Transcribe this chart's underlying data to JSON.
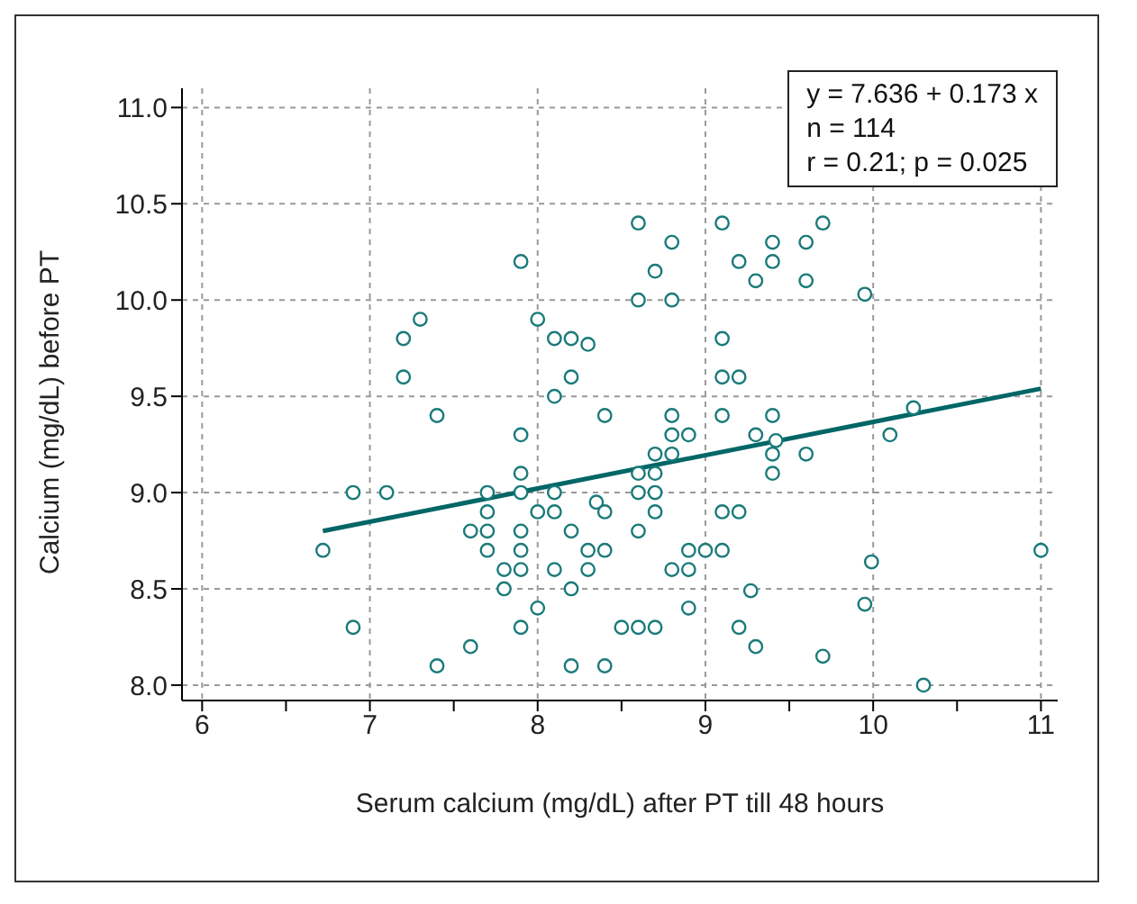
{
  "chart_data": {
    "type": "scatter",
    "xlabel": "Serum calcium (mg/dL) after PT till 48 hours",
    "ylabel": "Calcium (mg/dL) before PT",
    "xlim": [
      5.88,
      11.1
    ],
    "xticks": [
      6,
      {
        "value": 6.5,
        "label": null
      },
      7,
      {
        "value": 7.5,
        "label": null
      },
      8,
      {
        "value": 8.5,
        "label": null
      },
      9,
      {
        "value": 9.5,
        "label": null
      },
      10,
      {
        "value": 10.5,
        "label": null
      },
      11
    ],
    "ylim": [
      7.92,
      11.1
    ],
    "yticks": [
      {
        "value": 8,
        "label": "8.0"
      },
      8.5,
      {
        "value": 9,
        "label": "9.0"
      },
      9.5,
      {
        "value": 10,
        "label": "10.0"
      },
      10.5,
      {
        "value": 11,
        "label": "11.0"
      }
    ],
    "grid": true,
    "annotations": [
      "y = 7.636 + 0.173 x",
      "n = 114",
      "r = 0.21; p = 0.025"
    ],
    "series": [
      {
        "marker": "circle",
        "color": "#1a7a7a",
        "x": [
          8.6,
          8.8,
          8.7,
          8.6,
          8.8,
          9.1,
          9.4,
          9.6,
          9.7,
          9.2,
          9.4,
          9.3,
          9.6,
          9.95,
          9.1,
          9.1,
          9.2,
          8.8,
          9.1,
          9.4,
          10.24,
          7.9,
          7.3,
          7.2,
          8.0,
          8.1,
          8.2,
          8.3,
          7.2,
          8.2,
          8.1,
          7.4,
          8.4,
          7.9,
          7.9,
          6.9,
          7.1,
          7.7,
          7.9,
          8.1,
          8.35,
          7.7,
          8.0,
          8.1,
          8.4,
          7.6,
          7.7,
          7.9,
          8.2,
          6.72,
          7.7,
          7.9,
          8.3,
          8.4,
          7.8,
          7.9,
          8.1,
          8.3,
          7.8,
          8.2,
          8.0,
          6.9,
          7.9,
          8.5,
          7.6,
          7.4,
          8.2,
          8.4,
          8.8,
          8.9,
          9.3,
          9.42,
          8.7,
          8.8,
          9.4,
          9.6,
          10.1,
          8.6,
          8.7,
          9.4,
          8.6,
          8.7,
          8.7,
          9.1,
          9.2,
          8.6,
          8.9,
          9.0,
          9.1,
          9.99,
          11.0,
          8.8,
          8.9,
          9.27,
          8.9,
          9.95,
          8.6,
          8.7,
          9.2,
          9.3,
          9.7,
          10.3
        ],
        "values": [
          10.4,
          10.3,
          10.15,
          10.0,
          10.0,
          10.4,
          10.3,
          10.3,
          10.4,
          10.2,
          10.2,
          10.1,
          10.1,
          10.03,
          9.8,
          9.6,
          9.6,
          9.4,
          9.4,
          9.4,
          9.44,
          10.2,
          9.9,
          9.8,
          9.9,
          9.8,
          9.8,
          9.77,
          9.6,
          9.6,
          9.5,
          9.4,
          9.4,
          9.3,
          9.1,
          9.0,
          9.0,
          9.0,
          9.0,
          9.0,
          8.95,
          8.9,
          8.9,
          8.9,
          8.9,
          8.8,
          8.8,
          8.8,
          8.8,
          8.7,
          8.7,
          8.7,
          8.7,
          8.7,
          8.6,
          8.6,
          8.6,
          8.6,
          8.5,
          8.5,
          8.4,
          8.3,
          8.3,
          8.3,
          8.2,
          8.1,
          8.1,
          8.1,
          9.3,
          9.3,
          9.3,
          9.27,
          9.2,
          9.2,
          9.2,
          9.2,
          9.3,
          9.1,
          9.1,
          9.1,
          9.0,
          9.0,
          8.9,
          8.9,
          8.9,
          8.8,
          8.7,
          8.7,
          8.7,
          8.64,
          8.7,
          8.6,
          8.6,
          8.49,
          8.4,
          8.42,
          8.3,
          8.3,
          8.3,
          8.2,
          8.15,
          8.0
        ]
      },
      {
        "type": "line",
        "color": "#006666",
        "x": [
          6.72,
          11.0
        ],
        "values": [
          8.8,
          9.54
        ]
      }
    ]
  }
}
